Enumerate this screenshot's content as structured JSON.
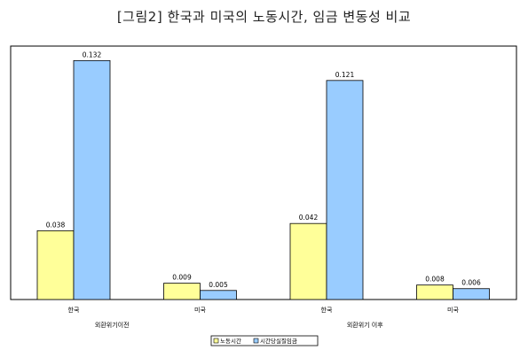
{
  "chart_data": {
    "type": "bar",
    "title": "[그림2] 한국과 미국의 노동시간, 임금 변동성 비교",
    "xlabel": "",
    "ylabel": "",
    "ylim": [
      0,
      0.14
    ],
    "grid": false,
    "legend_position": "bottom",
    "categories": [
      "한국",
      "미국",
      "한국",
      "미국"
    ],
    "groups": [
      "외환위기이전",
      "외환위기 이후"
    ],
    "series": [
      {
        "name": "노동시간",
        "color": "#FFFF99",
        "values": [
          0.038,
          0.009,
          0.042,
          0.008
        ],
        "labels": [
          "0.038",
          "0.009",
          "0.042",
          "0.008"
        ]
      },
      {
        "name": "시간당실질임금",
        "color": "#99CCFF",
        "values": [
          0.132,
          0.005,
          0.121,
          0.006
        ],
        "labels": [
          "0.132",
          "0.005",
          "0.121",
          "0.006"
        ]
      }
    ]
  }
}
